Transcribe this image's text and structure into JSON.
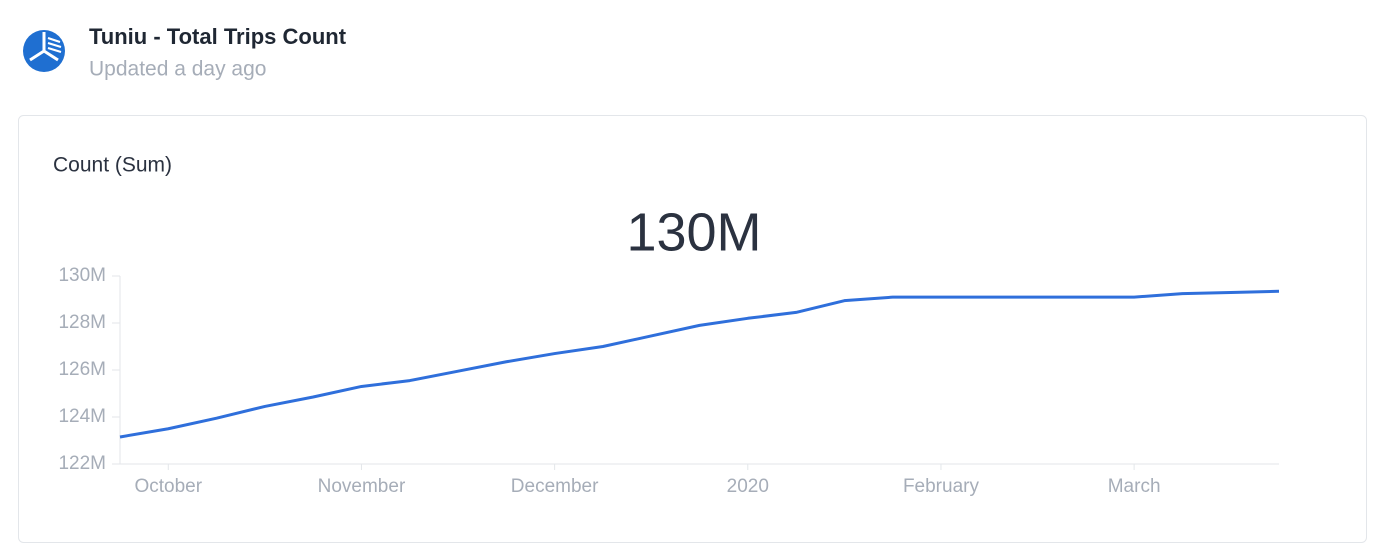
{
  "header": {
    "title": "Tuniu - Total Trips Count",
    "subtitle": "Updated a day ago"
  },
  "card": {
    "title": "Count (Sum)",
    "headline": "130M"
  },
  "chart_data": {
    "type": "line",
    "color": "#2f6fdb",
    "categories": [
      null,
      "October",
      null,
      null,
      null,
      "November",
      null,
      null,
      null,
      "December",
      null,
      null,
      null,
      "2020",
      null,
      null,
      null,
      "February",
      null,
      null,
      null,
      "March",
      null,
      null,
      null
    ],
    "values": [
      123150000,
      123500000,
      123950000,
      124450000,
      124850000,
      125300000,
      125550000,
      125950000,
      126350000,
      126700000,
      127000000,
      127450000,
      127900000,
      128200000,
      128450000,
      128950000,
      129100000,
      129100000,
      129100000,
      129100000,
      129100000,
      129100000,
      129250000,
      129300000,
      129350000
    ],
    "ylim": [
      122000000,
      130000000
    ],
    "yticks": [
      {
        "value": 122000000,
        "label": "122M"
      },
      {
        "value": 124000000,
        "label": "124M"
      },
      {
        "value": 126000000,
        "label": "126M"
      },
      {
        "value": 128000000,
        "label": "128M"
      },
      {
        "value": 130000000,
        "label": "130M"
      }
    ]
  }
}
